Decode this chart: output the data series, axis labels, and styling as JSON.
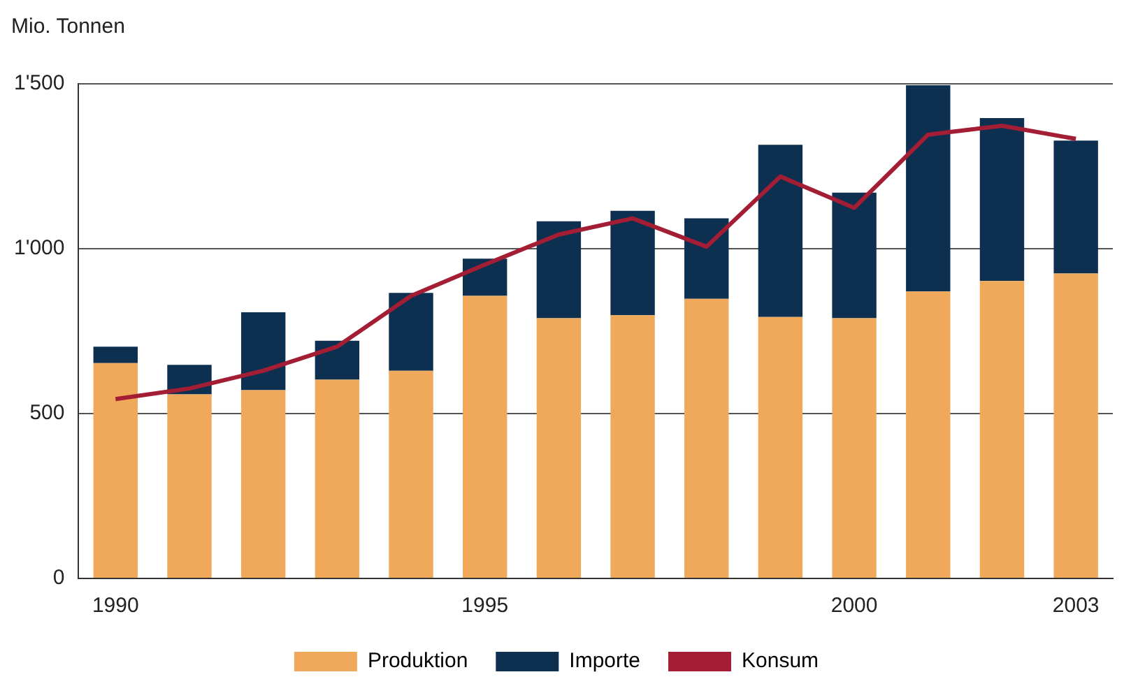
{
  "chart_data": {
    "type": "bar",
    "ylabel": "Mio. Tonnen",
    "categories": [
      "1990",
      null,
      null,
      null,
      null,
      "1995",
      null,
      null,
      null,
      null,
      "2000",
      null,
      null,
      "2003"
    ],
    "stacked": true,
    "series": [
      {
        "name": "Produktion",
        "color": "#f0a95a",
        "values": [
          653,
          558,
          571,
          603,
          630,
          857,
          789,
          798,
          848,
          793,
          789,
          870,
          902,
          925
        ]
      },
      {
        "name": "Importe",
        "color": "#0d2f50",
        "values": [
          50,
          90,
          236,
          118,
          236,
          113,
          294,
          317,
          244,
          522,
          381,
          626,
          494,
          403
        ]
      },
      {
        "name": "Konsum",
        "type": "line",
        "color": "#a31d35",
        "values": [
          544,
          576,
          630,
          703,
          857,
          952,
          1043,
          1092,
          1006,
          1219,
          1124,
          1346,
          1373,
          1333
        ]
      }
    ],
    "ylim": [
      0,
      1500
    ],
    "yticks": [
      0,
      500,
      {
        "value": 1000,
        "label": "1'000"
      },
      {
        "value": 1500,
        "label": "1'500"
      }
    ],
    "grid": "y",
    "legend": "bottom",
    "marker": "none",
    "line_style": "solid"
  }
}
